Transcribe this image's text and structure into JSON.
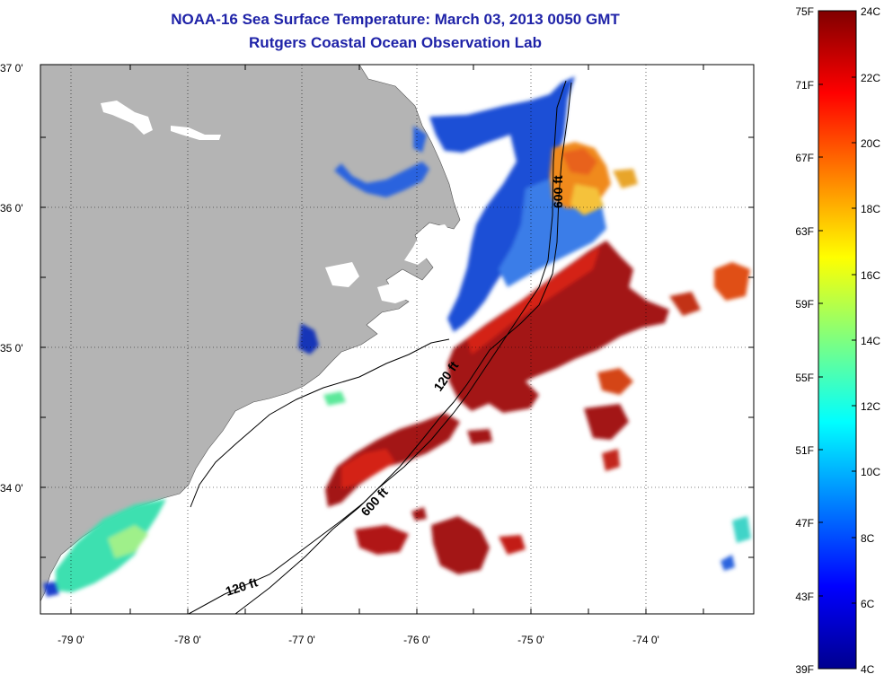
{
  "title": "NOAA-16 Sea Surface Temperature:  March 03, 2013 0050 GMT",
  "subtitle": "Rutgers Coastal Ocean Observation Lab",
  "lat_labels": [
    "37 0'",
    "36 0'",
    "35 0'",
    "34 0'"
  ],
  "lon_labels": [
    "-79 0'",
    "-78 0'",
    "-77 0'",
    "-76 0'",
    "-75 0'",
    "-74 0'"
  ],
  "contours": {
    "c120_south": "120 ft",
    "c600_south": "600 ft",
    "c120_mid": "120 ft",
    "c600_north": "600 ft"
  },
  "colorbar": {
    "f_labels": [
      "75F",
      "71F",
      "67F",
      "63F",
      "59F",
      "55F",
      "51F",
      "47F",
      "43F",
      "39F"
    ],
    "c_labels": [
      "24C",
      "22C",
      "20C",
      "18C",
      "16C",
      "14C",
      "12C",
      "10C",
      "8C",
      "6C",
      "4C"
    ]
  },
  "colors": {
    "land": "#b4b4b4",
    "water_background": "#ffffff",
    "title": "#1f23a8",
    "warm": "#9e1010",
    "cold": "#1d4fd6"
  }
}
